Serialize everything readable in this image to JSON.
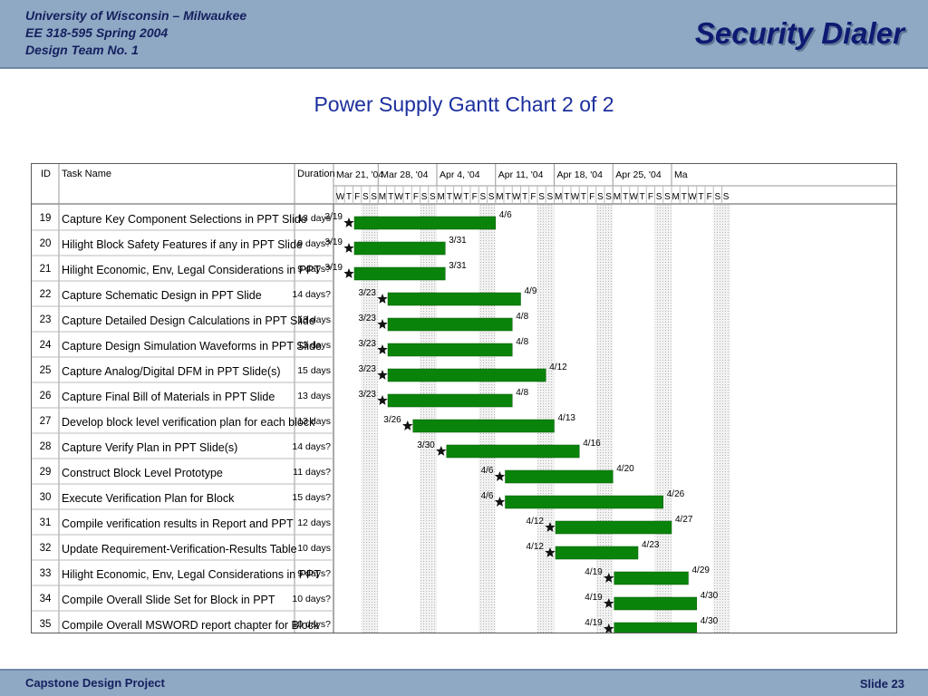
{
  "header": {
    "line1": "University of Wisconsin – Milwaukee",
    "line2": "EE 318-595 Spring 2004",
    "line3": "Design Team No. 1",
    "title": "Security Dialer"
  },
  "slide_title": "Power Supply Gantt Chart 2 of 2",
  "footer": {
    "left": "Capstone Design Project",
    "right": "Slide 23"
  },
  "colors": {
    "bar": "#0a830a",
    "header_bg": "#8fa8c4",
    "title_text": "#0e1a72",
    "slide_title_text": "#1c2f9e"
  },
  "gantt": {
    "columns": {
      "id": "ID",
      "task_name": "Task Name",
      "duration": "Duration"
    },
    "weeks": [
      "Mar 21, '04",
      "Mar 28, '04",
      "Apr 4, '04",
      "Apr 11, '04",
      "Apr 18, '04",
      "Apr 25, '04",
      "Ma"
    ],
    "day_letters": [
      "W",
      "T",
      "F",
      "S",
      "S",
      "M",
      "T",
      "W",
      "T",
      "F",
      "S",
      "S",
      "M",
      "T",
      "W",
      "T",
      "F",
      "S",
      "S",
      "M",
      "T",
      "W",
      "T",
      "F",
      "S",
      "S",
      "M",
      "T",
      "W",
      "T",
      "F",
      "S",
      "S",
      "M",
      "T",
      "W",
      "T",
      "F",
      "S",
      "S",
      "M",
      "T",
      "W",
      "T",
      "F",
      "S",
      "S"
    ],
    "tasks": [
      {
        "id": "19",
        "name": "Capture Key Component Selections in PPT Slide",
        "duration": "13 days",
        "start": "3/19",
        "finish": "4/6",
        "start_day": 0,
        "end_day": 19
      },
      {
        "id": "20",
        "name": "Hilight Block Safety Features if any in PPT Slide",
        "duration": "9 days?",
        "start": "3/19",
        "finish": "3/31",
        "start_day": 0,
        "end_day": 13
      },
      {
        "id": "21",
        "name": "Hilight Economic, Env, Legal Considerations in PPT",
        "duration": "9 days?",
        "start": "3/19",
        "finish": "3/31",
        "start_day": 0,
        "end_day": 13
      },
      {
        "id": "22",
        "name": "Capture Schematic Design in PPT Slide",
        "duration": "14 days?",
        "start": "3/23",
        "finish": "4/9",
        "start_day": 4,
        "end_day": 22
      },
      {
        "id": "23",
        "name": "Capture Detailed Design Calculations in PPT Slide",
        "duration": "13 days",
        "start": "3/23",
        "finish": "4/8",
        "start_day": 4,
        "end_day": 21
      },
      {
        "id": "24",
        "name": "Capture Design Simulation Waveforms in PPT Slide",
        "duration": "13 days",
        "start": "3/23",
        "finish": "4/8",
        "start_day": 4,
        "end_day": 21
      },
      {
        "id": "25",
        "name": "Capture Analog/Digital DFM in PPT Slide(s)",
        "duration": "15 days",
        "start": "3/23",
        "finish": "4/12",
        "start_day": 4,
        "end_day": 25
      },
      {
        "id": "26",
        "name": "Capture Final Bill of Materials in PPT Slide",
        "duration": "13 days",
        "start": "3/23",
        "finish": "4/8",
        "start_day": 4,
        "end_day": 21
      },
      {
        "id": "27",
        "name": "Develop block level verification plan for each block",
        "duration": "13 days",
        "start": "3/26",
        "finish": "4/13",
        "start_day": 7,
        "end_day": 26
      },
      {
        "id": "28",
        "name": "Capture Verify Plan in PPT Slide(s)",
        "duration": "14 days?",
        "start": "3/30",
        "finish": "4/16",
        "start_day": 11,
        "end_day": 29
      },
      {
        "id": "29",
        "name": "Construct Block Level Prototype",
        "duration": "11 days?",
        "start": "4/6",
        "finish": "4/20",
        "start_day": 18,
        "end_day": 33
      },
      {
        "id": "30",
        "name": "Execute Verification Plan for Block",
        "duration": "15 days?",
        "start": "4/6",
        "finish": "4/26",
        "start_day": 18,
        "end_day": 39
      },
      {
        "id": "31",
        "name": "Compile verification results in Report and PPT",
        "duration": "12 days",
        "start": "4/12",
        "finish": "4/27",
        "start_day": 24,
        "end_day": 40
      },
      {
        "id": "32",
        "name": "Update Requirement-Verification-Results Table",
        "duration": "10 days",
        "start": "4/12",
        "finish": "4/23",
        "start_day": 24,
        "end_day": 36
      },
      {
        "id": "33",
        "name": "Hilight Economic, Env, Legal Considerations in PPT",
        "duration": "9 days?",
        "start": "4/19",
        "finish": "4/29",
        "start_day": 31,
        "end_day": 42
      },
      {
        "id": "34",
        "name": "Compile Overall Slide Set for Block in PPT",
        "duration": "10 days?",
        "start": "4/19",
        "finish": "4/30",
        "start_day": 31,
        "end_day": 43
      },
      {
        "id": "35",
        "name": "Compile Overall MSWORD report chapter for Block",
        "duration": "10 days?",
        "start": "4/19",
        "finish": "4/30",
        "start_day": 31,
        "end_day": 43
      }
    ]
  }
}
